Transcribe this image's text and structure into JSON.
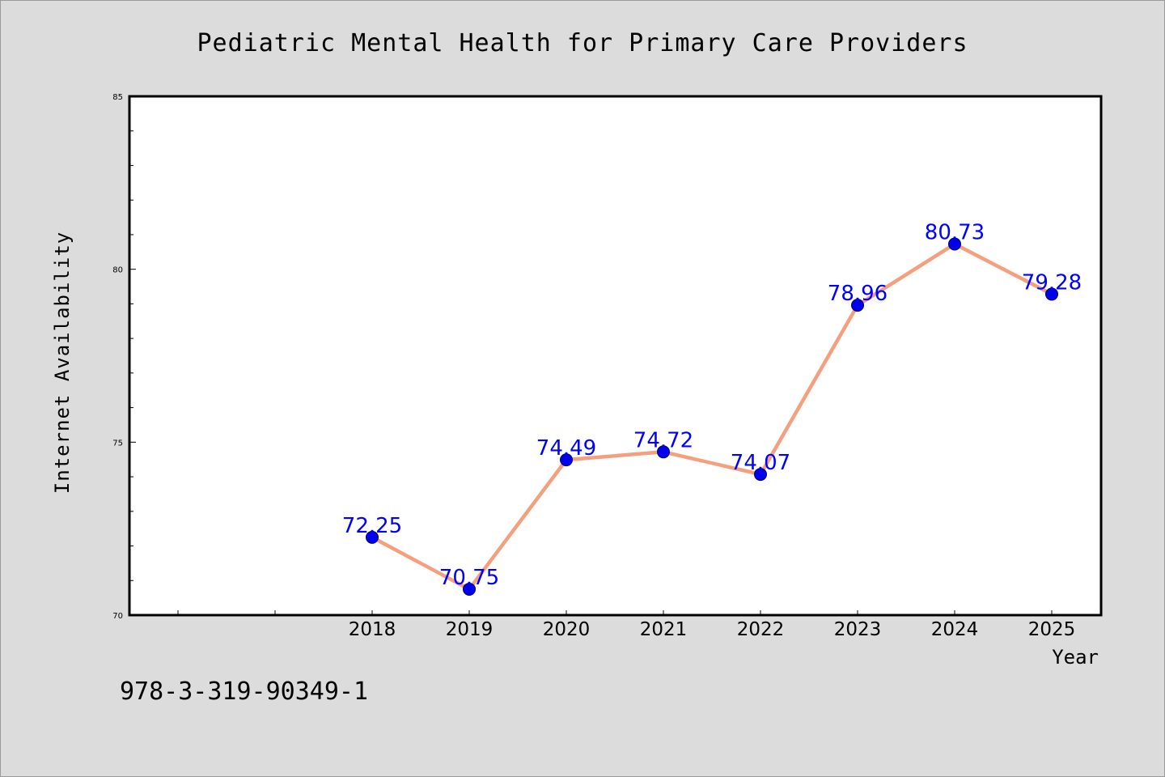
{
  "chart_data": {
    "type": "line",
    "title": "Pediatric Mental Health for Primary Care Providers",
    "xlabel": "Year",
    "ylabel": "Internet Availability",
    "categories": [
      "2018",
      "2019",
      "2020",
      "2021",
      "2022",
      "2023",
      "2024",
      "2025"
    ],
    "series": [
      {
        "values": [
          72.25,
          70.75,
          74.49,
          74.72,
          74.07,
          78.96,
          80.73,
          79.28
        ],
        "labels": [
          "72.25",
          "70.75",
          "74.49",
          "74.72",
          "74.07",
          "78.96",
          "80.73",
          "79.28"
        ]
      }
    ],
    "ylim": [
      70,
      85
    ],
    "yticks": [
      "70",
      "75",
      "80",
      "85"
    ],
    "grid": false,
    "colors": {
      "line": "#f4a07e",
      "marker": "#0000ee",
      "marker_edge": "#000066",
      "data_label": "#0000ff",
      "background": "#dcdcdc",
      "plot_background": "#ffffff"
    }
  },
  "footer_text": "978-3-319-90349-1"
}
